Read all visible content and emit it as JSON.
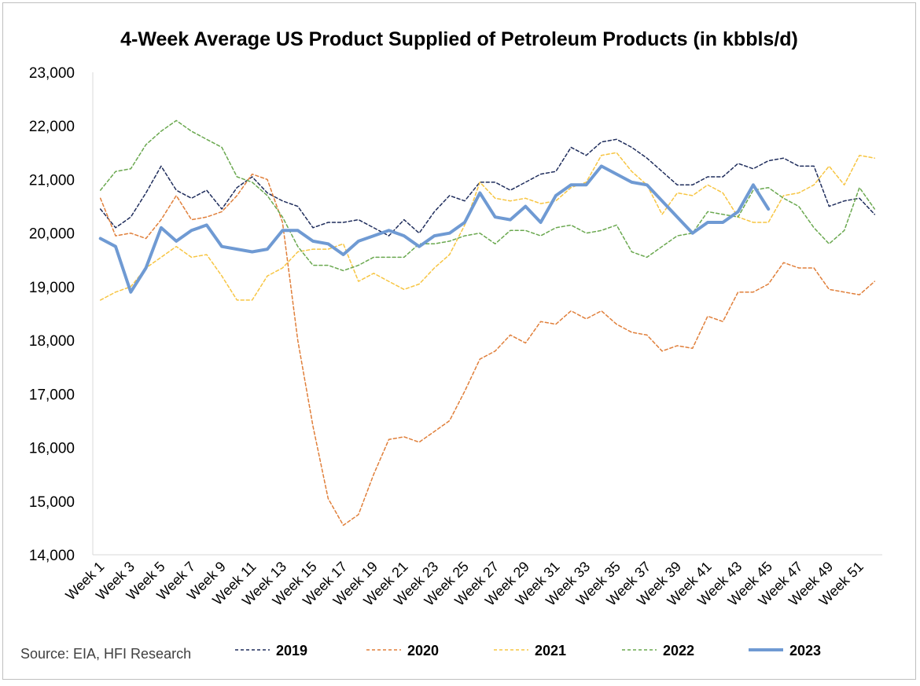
{
  "chart_data": {
    "type": "line",
    "title": "4-Week Average US Product Supplied of Petroleum Products (in kbbls/d)",
    "xlabel": "",
    "ylabel": "",
    "ylim": [
      14000,
      23000
    ],
    "y_ticks": [
      14000,
      15000,
      16000,
      17000,
      18000,
      19000,
      20000,
      21000,
      22000,
      23000
    ],
    "y_tick_labels": [
      "14,000",
      "15,000",
      "16,000",
      "17,000",
      "18,000",
      "19,000",
      "20,000",
      "21,000",
      "22,000",
      "23,000"
    ],
    "x_tick_labels": [
      "Week 1",
      "Week 3",
      "Week 5",
      "Week 7",
      "Week 9",
      "Week 11",
      "Week 13",
      "Week 15",
      "Week 17",
      "Week 19",
      "Week 21",
      "Week 23",
      "Week 25",
      "Week 27",
      "Week 29",
      "Week 31",
      "Week 33",
      "Week 35",
      "Week 37",
      "Week 39",
      "Week 41",
      "Week 43",
      "Week 45",
      "Week 47",
      "Week 49",
      "Week 51"
    ],
    "week_count": 52,
    "grid": false,
    "legend_position": "bottom",
    "source": "Source: EIA, HFI Research",
    "series": [
      {
        "name": "2019",
        "color": "#1f2d5c",
        "dash": "dashed",
        "values": [
          20450,
          20100,
          20300,
          20750,
          21250,
          20800,
          20650,
          20800,
          20450,
          20850,
          21050,
          20750,
          20600,
          20500,
          20100,
          20200,
          20200,
          20250,
          20100,
          19950,
          20250,
          20000,
          20400,
          20700,
          20600,
          20950,
          20950,
          20800,
          20950,
          21100,
          21150,
          21600,
          21450,
          21700,
          21750,
          21600,
          21400,
          21150,
          20900,
          20900,
          21050,
          21050,
          21300,
          21200,
          21350,
          21400,
          21250,
          21250,
          20500,
          20600,
          20650,
          20350
        ]
      },
      {
        "name": "2020",
        "color": "#e07f3a",
        "dash": "dashed",
        "values": [
          20650,
          19950,
          20000,
          19900,
          20250,
          20700,
          20250,
          20300,
          20400,
          20700,
          21100,
          21000,
          20200,
          18000,
          16400,
          15050,
          14550,
          14750,
          15500,
          16150,
          16200,
          16100,
          16300,
          16500,
          17050,
          17650,
          17800,
          18100,
          17950,
          18350,
          18300,
          18550,
          18400,
          18550,
          18300,
          18150,
          18100,
          17800,
          17900,
          17850,
          18450,
          18350,
          18900,
          18900,
          19050,
          19450,
          19350,
          19350,
          18950,
          18900,
          18850,
          19100
        ]
      },
      {
        "name": "2021",
        "color": "#f7c542",
        "dash": "dashed",
        "values": [
          18750,
          18900,
          19000,
          19350,
          19550,
          19750,
          19550,
          19600,
          19200,
          18750,
          18750,
          19200,
          19350,
          19650,
          19700,
          19700,
          19800,
          19100,
          19250,
          19100,
          18950,
          19050,
          19350,
          19600,
          20150,
          20950,
          20650,
          20600,
          20650,
          20550,
          20600,
          20850,
          20950,
          21450,
          21500,
          21150,
          20900,
          20350,
          20750,
          20700,
          20900,
          20750,
          20300,
          20200,
          20200,
          20700,
          20750,
          20900,
          21250,
          20900,
          21450,
          21400
        ]
      },
      {
        "name": "2022",
        "color": "#6aa84f",
        "dash": "dashed",
        "values": [
          20800,
          21150,
          21200,
          21650,
          21900,
          22100,
          21900,
          21750,
          21600,
          21050,
          20950,
          20700,
          20300,
          19750,
          19400,
          19400,
          19300,
          19400,
          19550,
          19550,
          19550,
          19800,
          19800,
          19850,
          19950,
          20000,
          19800,
          20050,
          20050,
          19950,
          20100,
          20150,
          20000,
          20050,
          20150,
          19650,
          19550,
          19750,
          19950,
          20000,
          20400,
          20350,
          20300,
          20800,
          20850,
          20650,
          20500,
          20100,
          19800,
          20050,
          20850,
          20450
        ]
      },
      {
        "name": "2023",
        "color": "#6f9ad3",
        "dash": "solid",
        "values": [
          19900,
          19750,
          18900,
          19350,
          20100,
          19850,
          20050,
          20150,
          19750,
          19700,
          19650,
          19700,
          20050,
          20050,
          19850,
          19800,
          19600,
          19850,
          19950,
          20050,
          19950,
          19750,
          19950,
          20000,
          20200,
          20750,
          20300,
          20250,
          20500,
          20200,
          20700,
          20900,
          20900,
          21250,
          21100,
          20950,
          20900,
          20600,
          20300,
          20000,
          20200,
          20200,
          20400,
          20900,
          20450
        ]
      }
    ]
  }
}
